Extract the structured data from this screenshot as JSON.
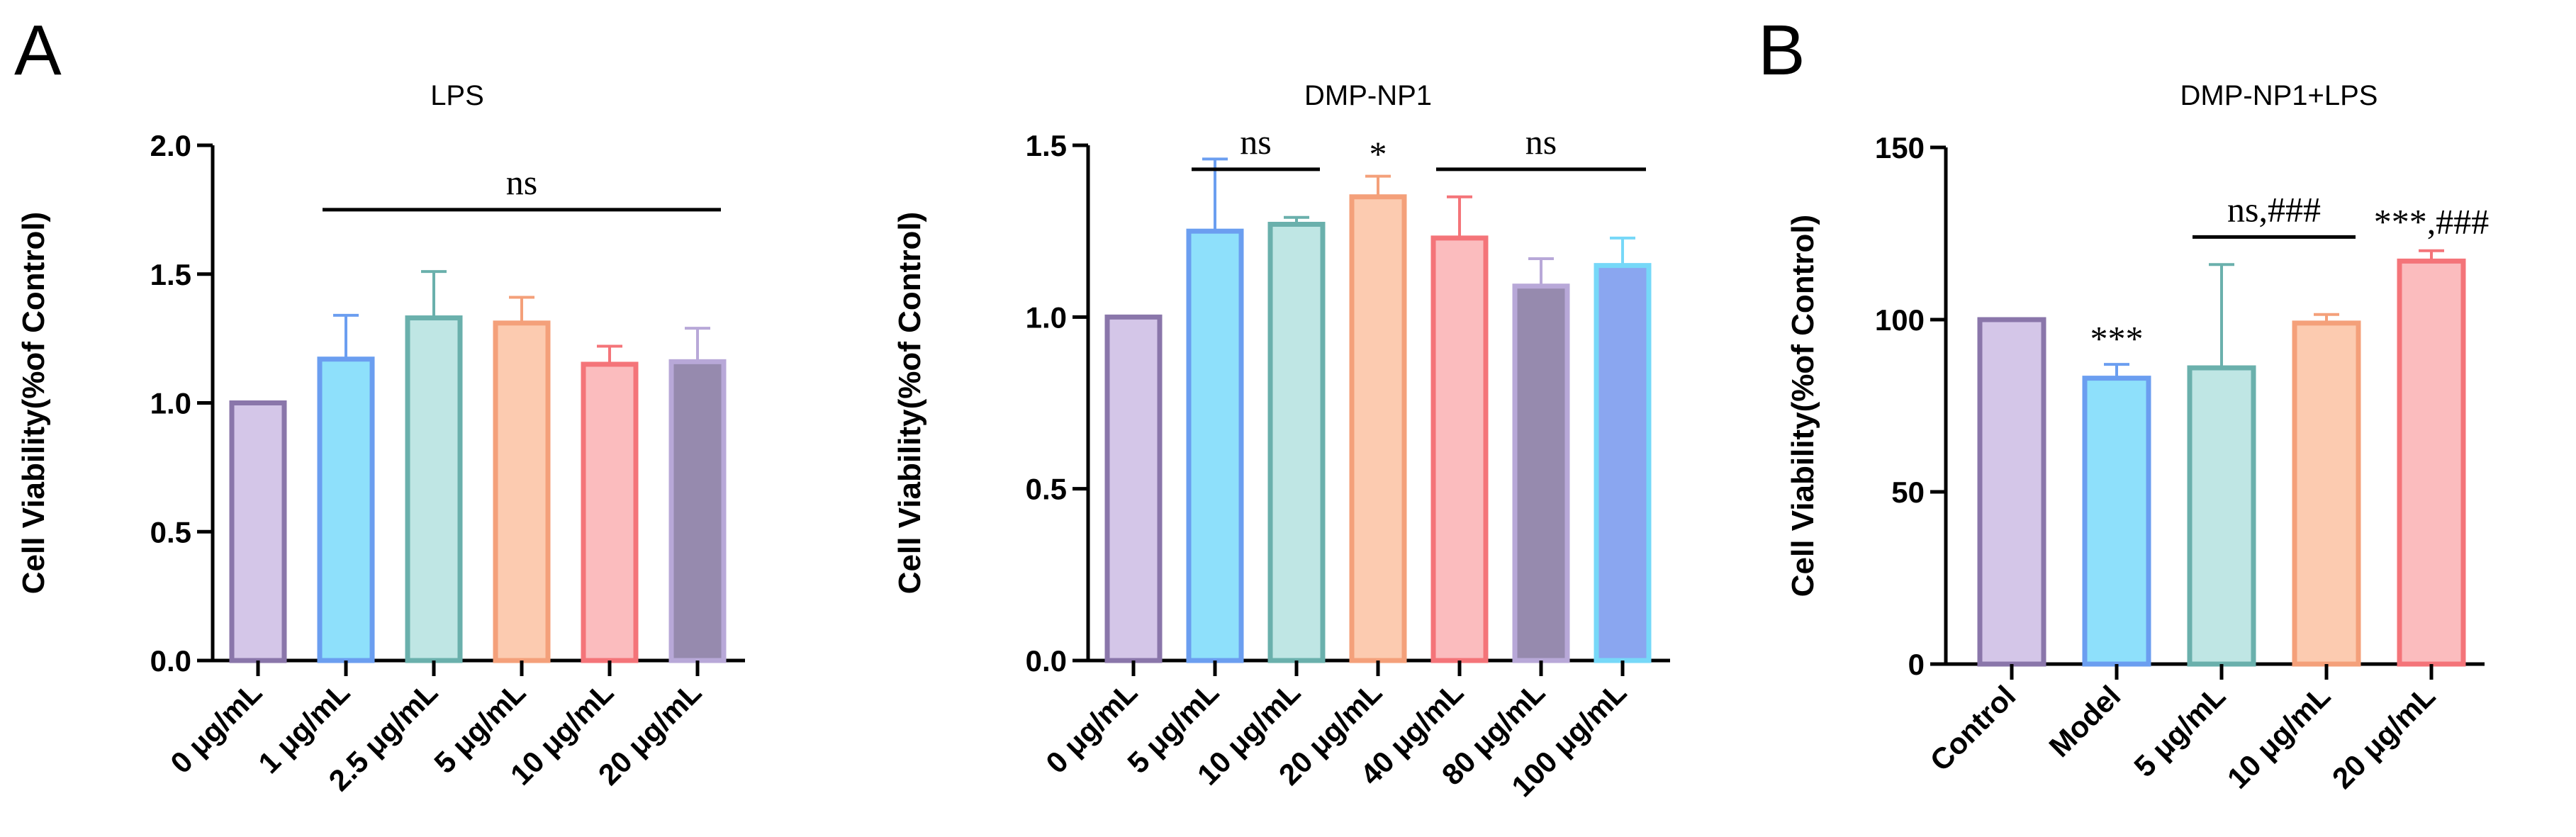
{
  "panel_letters": [
    "A",
    "B"
  ],
  "chart_data": [
    {
      "type": "bar",
      "title": "LPS",
      "xlabel": "",
      "ylabel": "Cell Viability(%of Control)",
      "categories": [
        "0 μg/mL",
        "1 μg/mL",
        "2.5 μg/mL",
        "5 μg/mL",
        "10 μg/mL",
        "20 μg/mL"
      ],
      "values": [
        1.0,
        1.17,
        1.33,
        1.31,
        1.15,
        1.16
      ],
      "errors": [
        0,
        0.17,
        0.18,
        0.1,
        0.07,
        0.13
      ],
      "ylim": [
        0,
        2.0
      ],
      "yticks": [
        "0.0",
        "0.5",
        "1.0",
        "1.5",
        "2.0"
      ],
      "ytick_values": [
        0,
        0.5,
        1.0,
        1.5,
        2.0
      ],
      "fills": [
        "#d4c6e8",
        "#8ee0fb",
        "#bfe6e4",
        "#fccbb0",
        "#fbbcbe",
        "#968aae"
      ],
      "strokes": [
        "#8a76aa",
        "#6b9ef0",
        "#6ab0ac",
        "#f4a07a",
        "#f47479",
        "#b8a8d8"
      ],
      "annotations": [
        {
          "text": "ns",
          "from": 1,
          "to": 5,
          "y": 1.75,
          "bracket": true
        }
      ],
      "grid": false,
      "legend": "none"
    },
    {
      "type": "bar",
      "title": "DMP-NP1",
      "xlabel": "",
      "ylabel": "Cell Viability(%of Control)",
      "categories": [
        "0 μg/mL",
        "5 μg/mL",
        "10 μg/mL",
        "20 μg/mL",
        "40 μg/mL",
        "80 μg/mL",
        "100 μg/mL"
      ],
      "values": [
        1.0,
        1.25,
        1.27,
        1.35,
        1.23,
        1.09,
        1.15
      ],
      "errors": [
        0,
        0.21,
        0.02,
        0.06,
        0.12,
        0.08,
        0.08
      ],
      "ylim": [
        0,
        1.5
      ],
      "yticks": [
        "0.0",
        "0.5",
        "1.0",
        "1.5"
      ],
      "ytick_values": [
        0,
        0.5,
        1.0,
        1.5
      ],
      "fills": [
        "#d4c6e8",
        "#8ee0fb",
        "#bfe6e4",
        "#fccbb0",
        "#fbbcbe",
        "#968aae",
        "#8aa6f0"
      ],
      "strokes": [
        "#8a76aa",
        "#6b9ef0",
        "#6ab0ac",
        "#f4a07a",
        "#f47479",
        "#b8a8d8",
        "#76d8f8"
      ],
      "annotations": [
        {
          "text": "ns",
          "from": 1,
          "to": 2,
          "y": 1.43,
          "bracket": true
        },
        {
          "text": "*",
          "at": 3,
          "y": 1.44,
          "bracket": false
        },
        {
          "text": "ns",
          "from": 4,
          "to": 6,
          "y": 1.43,
          "bracket": true
        }
      ],
      "grid": false,
      "legend": "none"
    },
    {
      "type": "bar",
      "title": "DMP-NP1+LPS",
      "xlabel": "",
      "ylabel": "Cell Viability(%of Control)",
      "categories": [
        "Control",
        "Model",
        "5 μg/mL",
        "10 μg/mL",
        "20 μg/mL"
      ],
      "values": [
        100,
        83,
        86,
        99,
        117
      ],
      "errors": [
        0,
        4,
        30,
        2.5,
        3
      ],
      "ylim": [
        0,
        150
      ],
      "yticks": [
        "0",
        "50",
        "100",
        "150"
      ],
      "ytick_values": [
        0,
        50,
        100,
        150
      ],
      "fills": [
        "#d4c6e8",
        "#8ee0fb",
        "#bfe6e4",
        "#fccbb0",
        "#fbbcbe"
      ],
      "strokes": [
        "#8a76aa",
        "#6b9ef0",
        "#6ab0ac",
        "#f4a07a",
        "#f47479"
      ],
      "annotations": [
        {
          "text": "***",
          "at": 1,
          "y": 91,
          "bracket": false
        },
        {
          "text": "ns,###",
          "from": 2,
          "to": 3,
          "y": 124,
          "bracket": true
        },
        {
          "text": "***,###",
          "at": 4,
          "y": 125,
          "bracket": false
        }
      ],
      "grid": false,
      "legend": "none"
    }
  ]
}
